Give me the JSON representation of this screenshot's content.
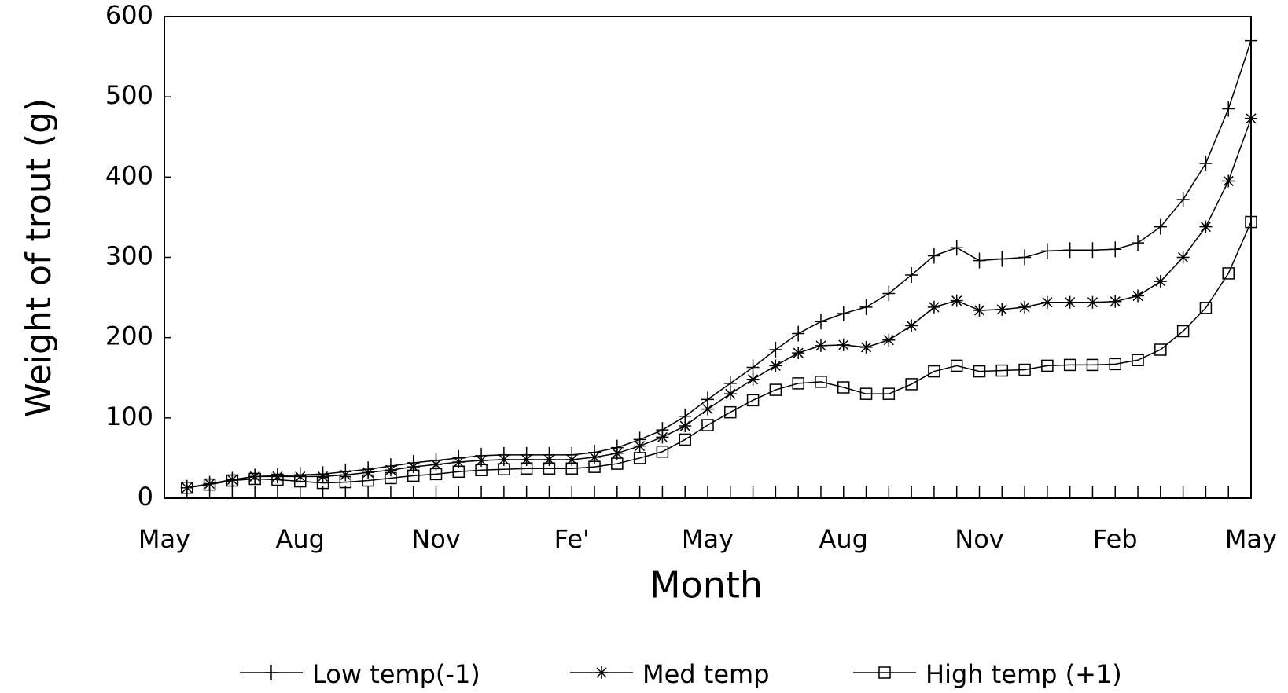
{
  "chart_data": {
    "type": "line",
    "xlabel": "Month",
    "ylabel": "Weight of trout (g)",
    "x": [
      0.5,
      1,
      1.5,
      2,
      2.5,
      3,
      3.5,
      4,
      4.5,
      5,
      5.5,
      6,
      6.5,
      7,
      7.5,
      8,
      8.5,
      9,
      9.5,
      10,
      10.5,
      11,
      11.5,
      12,
      12.5,
      13,
      13.5,
      14,
      14.5,
      15,
      15.5,
      16,
      16.5,
      17,
      17.5,
      18,
      18.5,
      19,
      19.5,
      20,
      20.5,
      21,
      21.5,
      22,
      22.5,
      23,
      23.5,
      24
    ],
    "xlim": [
      0,
      24
    ],
    "xticks": [
      {
        "value": 0,
        "label": "May"
      },
      {
        "value": 3,
        "label": "Aug"
      },
      {
        "value": 6,
        "label": "Nov"
      },
      {
        "value": 9,
        "label": "Fe'"
      },
      {
        "value": 12,
        "label": "May"
      },
      {
        "value": 15,
        "label": "Aug"
      },
      {
        "value": 18,
        "label": "Nov"
      },
      {
        "value": 21,
        "label": "Feb"
      },
      {
        "value": 24,
        "label": "May"
      }
    ],
    "xminorticks": [
      0.5,
      1,
      1.5,
      2,
      2.5,
      3.5,
      4,
      4.5,
      5,
      5.5,
      6.5,
      7,
      7.5,
      8,
      8.5,
      9.5,
      10,
      10.5,
      11,
      11.5,
      12.5,
      13,
      13.5,
      14,
      14.5,
      15.5,
      16,
      16.5,
      17,
      17.5,
      18.5,
      19,
      19.5,
      20,
      20.5,
      21.5,
      22,
      22.5,
      23,
      23.5
    ],
    "ylim": [
      0,
      600
    ],
    "yticks": [
      0,
      100,
      200,
      300,
      400,
      500,
      600
    ],
    "series": [
      {
        "name": "Low temp(-1)",
        "color": "#000000",
        "marker": "plus",
        "values": [
          13,
          18,
          23,
          27,
          28,
          29,
          30,
          33,
          36,
          40,
          44,
          47,
          50,
          53,
          54,
          54,
          54,
          54,
          57,
          63,
          73,
          85,
          102,
          123,
          143,
          163,
          185,
          205,
          220,
          230,
          238,
          255,
          278,
          302,
          312,
          296,
          298,
          300,
          308,
          309,
          309,
          310,
          318,
          338,
          372,
          417,
          485,
          570
        ]
      },
      {
        "name": "Med temp",
        "color": "#000000",
        "marker": "star",
        "values": [
          13,
          18,
          23,
          27,
          27,
          27,
          27,
          29,
          32,
          35,
          39,
          42,
          45,
          47,
          48,
          48,
          48,
          48,
          51,
          56,
          65,
          76,
          90,
          111,
          130,
          148,
          165,
          181,
          190,
          191,
          188,
          197,
          215,
          238,
          246,
          234,
          235,
          238,
          244,
          244,
          244,
          245,
          252,
          270,
          300,
          338,
          395,
          473
        ]
      },
      {
        "name": "High temp (+1)",
        "color": "#000000",
        "marker": "square",
        "values": [
          13,
          17,
          22,
          24,
          23,
          21,
          19,
          20,
          22,
          25,
          28,
          30,
          33,
          35,
          36,
          37,
          37,
          37,
          39,
          43,
          50,
          58,
          73,
          91,
          107,
          122,
          135,
          143,
          145,
          138,
          130,
          130,
          142,
          158,
          165,
          158,
          159,
          160,
          165,
          166,
          166,
          167,
          172,
          185,
          208,
          237,
          280,
          344
        ]
      }
    ],
    "legend": "bottom"
  }
}
